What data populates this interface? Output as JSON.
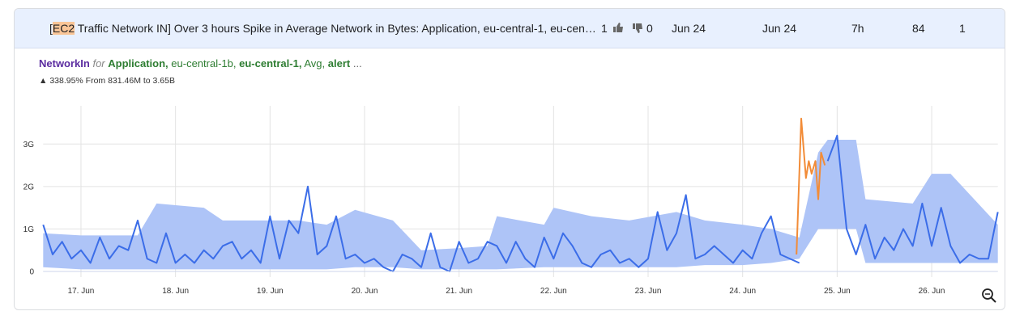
{
  "header": {
    "title_prefix": "[",
    "title_highlight": "EC2",
    "title_rest": " Traffic Network IN] Over 3 hours Spike in Average Network in Bytes: Application, eu-central-1, eu-cen…",
    "likes": "1",
    "dislikes": "0",
    "start": "Jun 24",
    "end": "Jun 24",
    "duration": "7h",
    "count": "84",
    "level": "1"
  },
  "subtitle": {
    "metric": "NetworkIn",
    "for": "for",
    "app": "Application,",
    "zone": "eu-central-1b,",
    "region": "eu-central-1,",
    "stat": "Avg,",
    "alert": "alert",
    "more": "...",
    "change": "338.95% From 831.46M to 3.65B"
  },
  "chart_data": {
    "type": "line",
    "xlim": [
      16.6,
      26.7
    ],
    "xticks": [
      {
        "value": 17,
        "label": "17. Jun"
      },
      {
        "value": 18,
        "label": "18. Jun"
      },
      {
        "value": 19,
        "label": "19. Jun"
      },
      {
        "value": 20,
        "label": "20. Jun"
      },
      {
        "value": 21,
        "label": "21. Jun"
      },
      {
        "value": 22,
        "label": "22. Jun"
      },
      {
        "value": 23,
        "label": "23. Jun"
      },
      {
        "value": 24,
        "label": "24. Jun"
      },
      {
        "value": 25,
        "label": "25. Jun"
      },
      {
        "value": 26,
        "label": "26. Jun"
      }
    ],
    "ylim": [
      0,
      3.9
    ],
    "yticks": [
      0,
      {
        "value": 1,
        "label": "1G"
      },
      {
        "value": 2,
        "label": "2G"
      },
      {
        "value": 3,
        "label": "3G"
      }
    ],
    "grid": true,
    "band": {
      "color": "#aec4f7",
      "x": [
        16.6,
        17.0,
        17.6,
        17.8,
        18.3,
        18.5,
        19.0,
        19.3,
        19.6,
        19.9,
        20.3,
        20.6,
        21.0,
        21.3,
        21.4,
        21.9,
        22.0,
        22.4,
        22.8,
        23.3,
        23.6,
        24.0,
        24.3,
        24.6,
        24.8,
        24.9,
        25.2,
        25.3,
        25.8,
        26.0,
        26.2,
        26.7
      ],
      "upper": [
        0.9,
        0.85,
        0.85,
        1.6,
        1.5,
        1.2,
        1.2,
        1.2,
        1.1,
        1.45,
        1.2,
        0.5,
        0.55,
        0.6,
        1.3,
        1.1,
        1.5,
        1.3,
        1.2,
        1.4,
        1.2,
        1.1,
        1.0,
        0.8,
        2.8,
        3.1,
        3.1,
        1.7,
        1.6,
        2.3,
        2.3,
        1.1
      ],
      "lower": [
        0.1,
        0.05,
        0.05,
        0.05,
        0.05,
        0.05,
        0.05,
        0.05,
        0.05,
        0.1,
        0.1,
        0.05,
        0.05,
        0.05,
        0.05,
        0.1,
        0.1,
        0.1,
        0.1,
        0.1,
        0.15,
        0.15,
        0.2,
        0.3,
        1.0,
        1.0,
        1.0,
        0.2,
        0.2,
        0.2,
        0.2,
        0.2
      ]
    },
    "series": [
      {
        "name": "NetworkIn",
        "color": "#3b6de8",
        "x": [
          16.6,
          16.7,
          16.8,
          16.9,
          17.0,
          17.1,
          17.2,
          17.3,
          17.4,
          17.5,
          17.6,
          17.7,
          17.8,
          17.9,
          18.0,
          18.1,
          18.2,
          18.3,
          18.4,
          18.5,
          18.6,
          18.7,
          18.8,
          18.9,
          19.0,
          19.1,
          19.2,
          19.3,
          19.4,
          19.5,
          19.6,
          19.7,
          19.8,
          19.9,
          20.0,
          20.1,
          20.2,
          20.3,
          20.4,
          20.5,
          20.6,
          20.7,
          20.8,
          20.9,
          21.0,
          21.1,
          21.2,
          21.3,
          21.4,
          21.5,
          21.6,
          21.7,
          21.8,
          21.9,
          22.0,
          22.1,
          22.2,
          22.3,
          22.4,
          22.5,
          22.6,
          22.7,
          22.8,
          22.9,
          23.0,
          23.1,
          23.2,
          23.3,
          23.4,
          23.5,
          23.6,
          23.7,
          23.8,
          23.9,
          24.0,
          24.1,
          24.2,
          24.3,
          24.4,
          24.5,
          24.6,
          24.7,
          24.8,
          24.9,
          25.0,
          25.1,
          25.2,
          25.3,
          25.4,
          25.5,
          25.6,
          25.7,
          25.8,
          25.9,
          26.0,
          26.1,
          26.2,
          26.3,
          26.4,
          26.5,
          26.6,
          26.7
        ],
        "values": [
          1.1,
          0.4,
          0.7,
          0.3,
          0.5,
          0.2,
          0.8,
          0.3,
          0.6,
          0.5,
          1.2,
          0.3,
          0.2,
          0.9,
          0.2,
          0.4,
          0.2,
          0.5,
          0.3,
          0.6,
          0.7,
          0.3,
          0.5,
          0.2,
          1.3,
          0.3,
          1.2,
          0.9,
          2.0,
          0.4,
          0.6,
          1.3,
          0.3,
          0.4,
          0.2,
          0.3,
          0.1,
          0.0,
          0.4,
          0.3,
          0.1,
          0.9,
          0.1,
          0.0,
          0.7,
          0.2,
          0.3,
          0.7,
          0.6,
          0.2,
          0.7,
          0.3,
          0.1,
          0.8,
          0.3,
          0.9,
          0.6,
          0.2,
          0.1,
          0.4,
          0.5,
          0.2,
          0.3,
          0.1,
          0.3,
          1.4,
          0.5,
          0.9,
          1.8,
          0.3,
          0.4,
          0.6,
          0.4,
          0.2,
          0.5,
          0.3,
          0.9,
          1.3,
          0.4,
          0.3,
          0.2,
          null,
          null,
          2.6,
          3.2,
          1.0,
          0.4,
          1.1,
          0.3,
          0.8,
          0.5,
          1.0,
          0.6,
          1.6,
          0.6,
          1.5,
          0.6,
          0.2,
          0.4,
          0.3,
          0.3,
          1.4
        ]
      },
      {
        "name": "alert",
        "color": "#f28c38",
        "x": [
          24.57,
          24.62,
          24.67,
          24.7,
          24.73,
          24.77,
          24.8,
          24.83,
          24.87
        ],
        "values": [
          0.4,
          3.6,
          2.2,
          2.6,
          2.3,
          2.6,
          1.7,
          2.8,
          2.5
        ]
      }
    ]
  }
}
